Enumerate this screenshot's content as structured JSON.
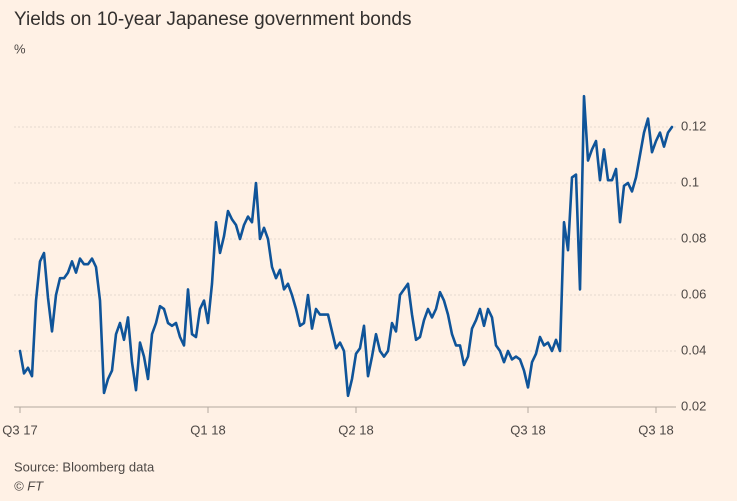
{
  "chart_data": {
    "type": "line",
    "title": "Yields on 10-year Japanese government bonds",
    "subtitle": "%",
    "source": "Source: Bloomberg data",
    "credit": "© FT",
    "categories": [
      "Q3 17",
      null,
      null,
      null,
      null,
      null,
      null,
      null,
      null,
      null,
      null,
      null,
      null,
      null,
      null,
      null,
      null,
      null,
      null,
      null,
      null,
      null,
      null,
      null,
      null,
      null,
      null,
      null,
      null,
      null,
      null,
      null,
      null,
      null,
      null,
      null,
      null,
      null,
      null,
      null,
      null,
      null,
      null,
      null,
      null,
      null,
      null,
      "Q1 18",
      null,
      null,
      null,
      null,
      null,
      null,
      null,
      null,
      null,
      null,
      null,
      null,
      null,
      null,
      null,
      null,
      null,
      null,
      null,
      null,
      null,
      null,
      null,
      null,
      null,
      null,
      null,
      null,
      null,
      null,
      null,
      null,
      null,
      null,
      null,
      null,
      "Q2 18",
      null,
      null,
      null,
      null,
      null,
      null,
      null,
      null,
      null,
      null,
      null,
      null,
      null,
      null,
      null,
      null,
      null,
      null,
      null,
      null,
      null,
      null,
      null,
      null,
      null,
      null,
      null,
      null,
      null,
      null,
      null,
      null,
      null,
      null,
      null,
      null,
      null,
      null,
      null,
      null,
      null,
      null,
      "Q3 18",
      null,
      null,
      null,
      null,
      null,
      null,
      null,
      null,
      null,
      null,
      null,
      null,
      null,
      null,
      null,
      null,
      null,
      null,
      null,
      null,
      null,
      null,
      null,
      null,
      null,
      null,
      null,
      null,
      null,
      null,
      null,
      "Q3 18",
      null,
      null,
      null,
      null
    ],
    "series": [
      {
        "name": "Yield",
        "color": "#0f5499",
        "values": [
          0.04,
          0.032,
          0.034,
          0.031,
          0.058,
          0.072,
          0.075,
          0.059,
          0.047,
          0.06,
          0.066,
          0.066,
          0.068,
          0.072,
          0.068,
          0.073,
          0.071,
          0.071,
          0.073,
          0.07,
          0.058,
          0.025,
          0.03,
          0.033,
          0.046,
          0.05,
          0.044,
          0.052,
          0.036,
          0.026,
          0.043,
          0.038,
          0.03,
          0.046,
          0.05,
          0.056,
          0.055,
          0.05,
          0.049,
          0.05,
          0.045,
          0.042,
          0.062,
          0.046,
          0.045,
          0.055,
          0.058,
          0.05,
          0.064,
          0.086,
          0.075,
          0.081,
          0.09,
          0.087,
          0.085,
          0.08,
          0.085,
          0.088,
          0.086,
          0.1,
          0.08,
          0.084,
          0.08,
          0.07,
          0.066,
          0.069,
          0.062,
          0.064,
          0.06,
          0.055,
          0.049,
          0.05,
          0.06,
          0.048,
          0.055,
          0.053,
          0.053,
          0.053,
          0.047,
          0.041,
          0.043,
          0.04,
          0.024,
          0.03,
          0.039,
          0.041,
          0.049,
          0.031,
          0.038,
          0.046,
          0.04,
          0.038,
          0.04,
          0.05,
          0.047,
          0.06,
          0.062,
          0.064,
          0.053,
          0.044,
          0.045,
          0.051,
          0.055,
          0.052,
          0.055,
          0.061,
          0.058,
          0.053,
          0.046,
          0.042,
          0.042,
          0.035,
          0.038,
          0.048,
          0.051,
          0.055,
          0.049,
          0.055,
          0.052,
          0.042,
          0.04,
          0.036,
          0.04,
          0.037,
          0.038,
          0.037,
          0.033,
          0.027,
          0.036,
          0.039,
          0.045,
          0.042,
          0.043,
          0.04,
          0.044,
          0.04,
          0.086,
          0.076,
          0.102,
          0.103,
          0.062,
          0.131,
          0.108,
          0.112,
          0.115,
          0.101,
          0.112,
          0.101,
          0.101,
          0.105,
          0.086,
          0.099,
          0.1,
          0.097,
          0.102,
          0.11,
          0.118,
          0.123,
          0.111,
          0.115,
          0.118,
          0.113,
          0.118,
          0.12
        ]
      }
    ],
    "ylim": [
      0.02,
      0.135
    ],
    "yticks": [
      0.02,
      0.04,
      0.06,
      0.08,
      0.1,
      0.12
    ],
    "grid": true
  }
}
